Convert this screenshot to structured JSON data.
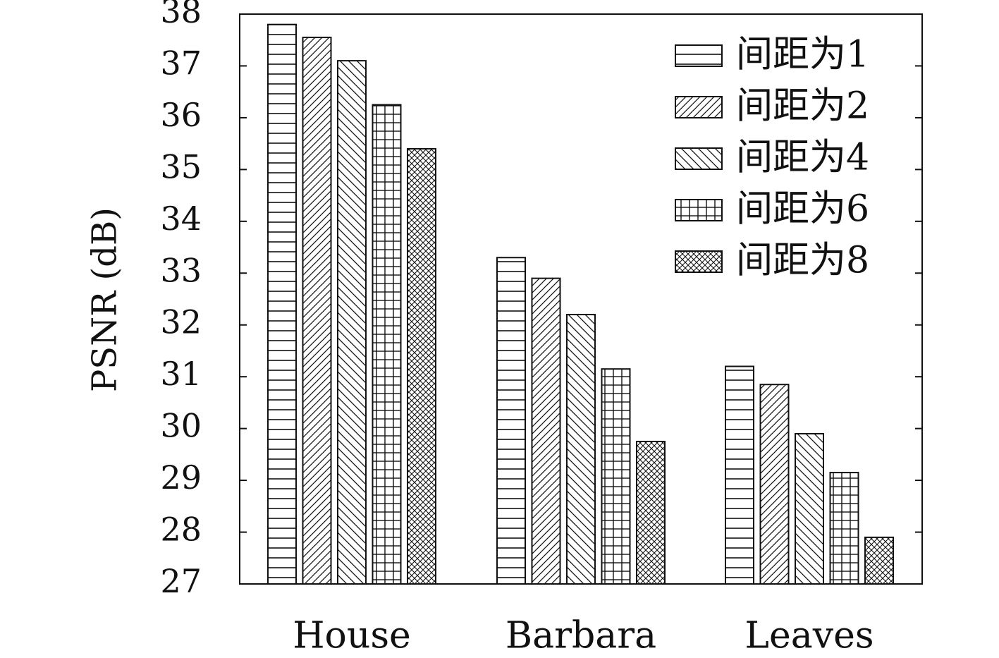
{
  "chart_data": {
    "type": "bar",
    "ylabel": "PSNR (dB)",
    "xlabel": "",
    "title": "",
    "ylim": [
      27,
      38
    ],
    "yticks": [
      "27",
      "28",
      "29",
      "30",
      "31",
      "32",
      "33",
      "34",
      "35",
      "36",
      "37",
      "38"
    ],
    "categories": [
      "House",
      "Barbara",
      "Leaves"
    ],
    "series": [
      {
        "name": "间距为1",
        "pattern": "horizontal-lines",
        "values": [
          37.8,
          33.3,
          31.2
        ]
      },
      {
        "name": "间距为2",
        "pattern": "diagonal-lines",
        "values": [
          37.55,
          32.9,
          30.85
        ]
      },
      {
        "name": "间距为4",
        "pattern": "back-diagonal-lines",
        "values": [
          37.1,
          32.2,
          29.9
        ]
      },
      {
        "name": "间距为6",
        "pattern": "grid",
        "values": [
          36.25,
          31.15,
          29.15
        ]
      },
      {
        "name": "间距为8",
        "pattern": "crosshatch",
        "values": [
          35.4,
          29.75,
          27.9
        ]
      }
    ],
    "legend_position": "top-right",
    "grid": false
  }
}
